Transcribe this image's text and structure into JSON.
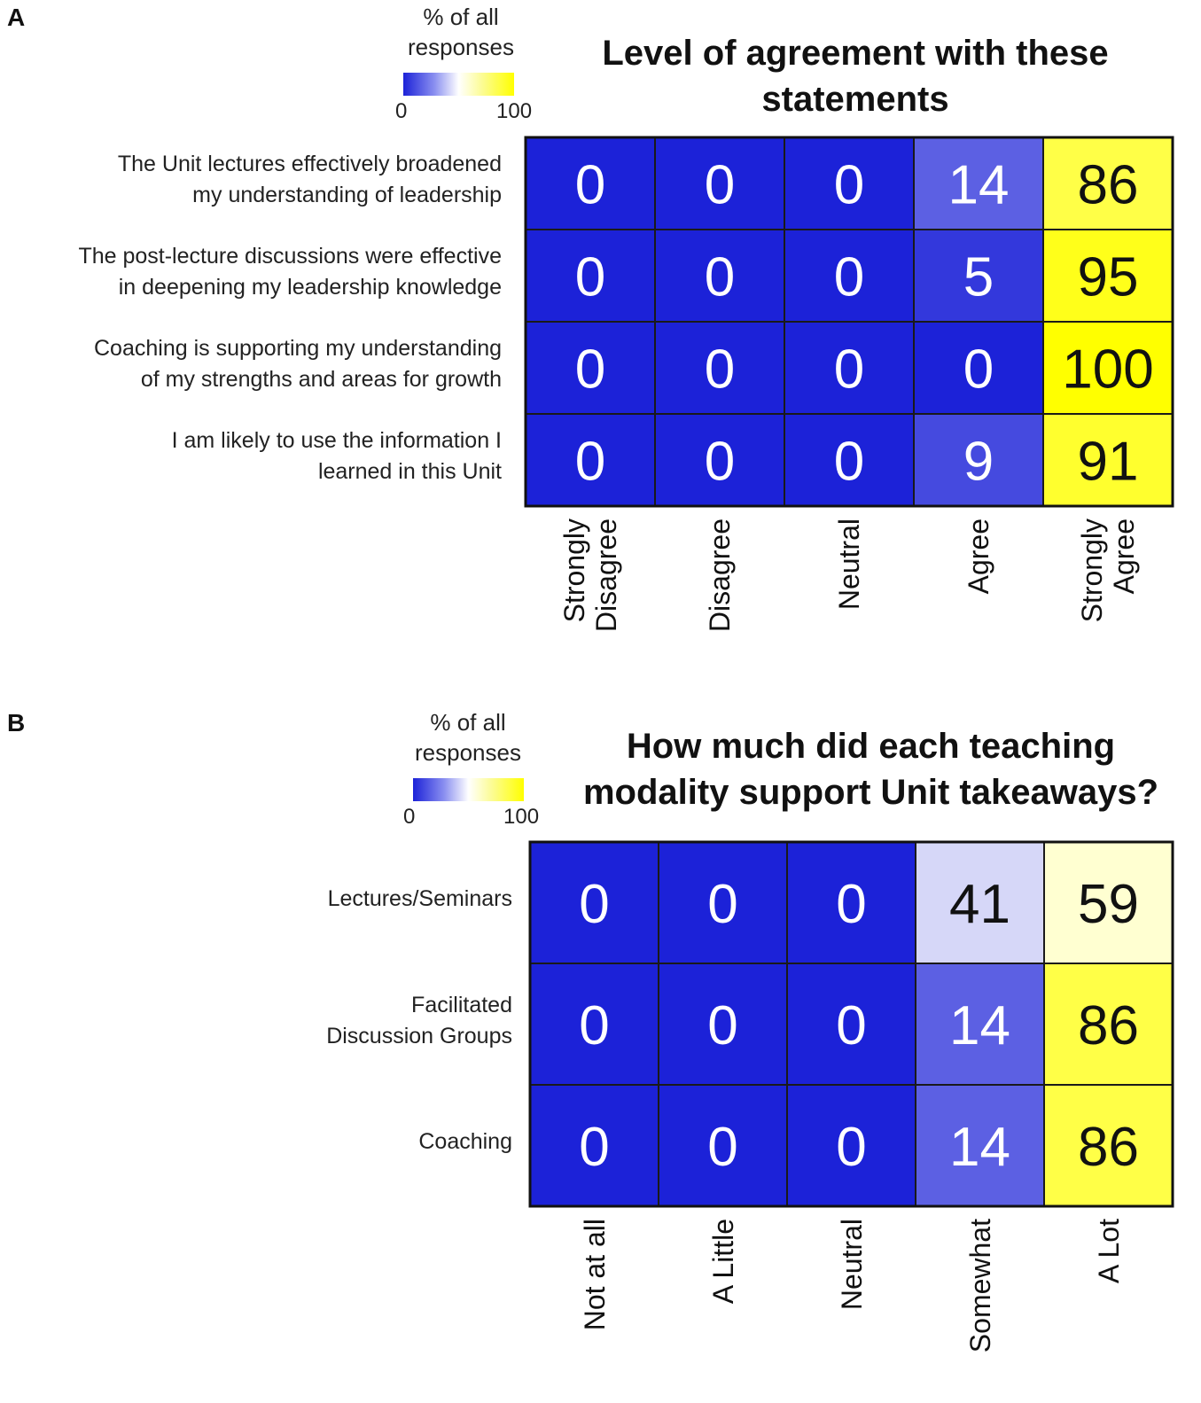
{
  "colorbar_scale": {
    "min": 0,
    "max": 100,
    "colors": [
      "#1c22d8",
      "#ffffff",
      "#ffff00"
    ]
  },
  "panels": [
    {
      "label": "A",
      "colorbar": {
        "title": "% of all responses",
        "min_label": "0",
        "max_label": "100"
      }
    },
    {
      "label": "B",
      "colorbar": {
        "title": "% of all responses",
        "min_label": "0",
        "max_label": "100"
      }
    }
  ],
  "chart_data": [
    {
      "type": "heatmap",
      "title": "Level of agreement with these statements",
      "rows": [
        "The Unit lectures effectively broadened my understanding of leadership",
        "The post-lecture discussions were effective in deepening my leadership knowledge",
        "Coaching is supporting my understanding of my strengths and areas for growth",
        "I am likely to use the information I learned in this Unit"
      ],
      "columns": [
        "Strongly Disagree",
        "Disagree",
        "Neutral",
        "Agree",
        "Strongly Agree"
      ],
      "values": [
        [
          0,
          0,
          0,
          14,
          86
        ],
        [
          0,
          0,
          0,
          5,
          95
        ],
        [
          0,
          0,
          0,
          0,
          100
        ],
        [
          0,
          0,
          0,
          9,
          91
        ]
      ],
      "colorbar_title": "% of all responses",
      "colorbar_range": [
        0,
        100
      ]
    },
    {
      "type": "heatmap",
      "title": "How much did each teaching modality support Unit takeaways?",
      "rows": [
        "Lectures/Seminars",
        "Facilitated Discussion Groups",
        "Coaching"
      ],
      "columns": [
        "Not at all",
        "A Little",
        "Neutral",
        "Somewhat",
        "A Lot"
      ],
      "values": [
        [
          0,
          0,
          0,
          41,
          59
        ],
        [
          0,
          0,
          0,
          14,
          86
        ],
        [
          0,
          0,
          0,
          14,
          86
        ]
      ],
      "colorbar_title": "% of all responses",
      "colorbar_range": [
        0,
        100
      ]
    }
  ]
}
